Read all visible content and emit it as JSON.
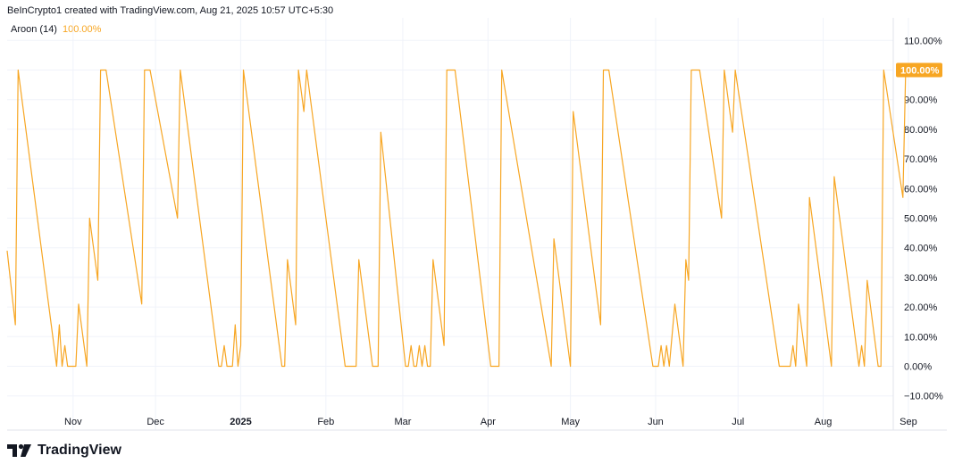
{
  "header": {
    "attribution": "BeInCrypto1 created with TradingView.com, Aug 21, 2025 10:57 UTC+5:30"
  },
  "legend": {
    "name": "Aroon (14)",
    "value": "100.00%"
  },
  "brand": {
    "name": "TradingView"
  },
  "colors": {
    "line": "#f7a623",
    "grid": "#f0f3fa"
  },
  "chart_data": {
    "type": "line",
    "series": [
      {
        "name": "Aroon (14)",
        "color": "#f7a623"
      }
    ],
    "ylim": [
      -10,
      110
    ],
    "yticks": [
      110,
      100,
      90,
      80,
      70,
      60,
      50,
      40,
      30,
      20,
      10,
      0,
      -10
    ],
    "ytick_labels": [
      "110.00%",
      "100.00%",
      "90.00%",
      "80.00%",
      "70.00%",
      "60.00%",
      "50.00%",
      "40.00%",
      "30.00%",
      "20.00%",
      "10.00%",
      "0.00%",
      "−10.00%"
    ],
    "xlim": [
      "2024-10-08",
      "2025-09-15"
    ],
    "xticks": [
      {
        "label": "Nov",
        "date": "2024-11-01",
        "bold": false
      },
      {
        "label": "Dec",
        "date": "2024-12-01",
        "bold": false
      },
      {
        "label": "2025",
        "date": "2025-01-01",
        "bold": true
      },
      {
        "label": "Feb",
        "date": "2025-02-01",
        "bold": false
      },
      {
        "label": "Mar",
        "date": "2025-03-01",
        "bold": false
      },
      {
        "label": "Apr",
        "date": "2025-04-01",
        "bold": false
      },
      {
        "label": "May",
        "date": "2025-05-01",
        "bold": false
      },
      {
        "label": "Jun",
        "date": "2025-06-01",
        "bold": false
      },
      {
        "label": "Jul",
        "date": "2025-07-01",
        "bold": false
      },
      {
        "label": "Aug",
        "date": "2025-08-01",
        "bold": false
      },
      {
        "label": "Sep",
        "date": "2025-09-01",
        "bold": false
      }
    ],
    "points": [
      [
        "2024-10-08",
        39
      ],
      [
        "2024-10-11",
        14
      ],
      [
        "2024-10-12",
        100
      ],
      [
        "2024-10-26",
        0
      ],
      [
        "2024-10-27",
        14
      ],
      [
        "2024-10-28",
        0
      ],
      [
        "2024-10-29",
        7
      ],
      [
        "2024-10-30",
        0
      ],
      [
        "2024-11-02",
        0
      ],
      [
        "2024-11-03",
        21
      ],
      [
        "2024-11-06",
        0
      ],
      [
        "2024-11-07",
        50
      ],
      [
        "2024-11-10",
        29
      ],
      [
        "2024-11-11",
        100
      ],
      [
        "2024-11-13",
        100
      ],
      [
        "2024-11-26",
        21
      ],
      [
        "2024-11-27",
        100
      ],
      [
        "2024-11-29",
        100
      ],
      [
        "2024-12-09",
        50
      ],
      [
        "2024-12-10",
        100
      ],
      [
        "2024-12-24",
        0
      ],
      [
        "2024-12-25",
        0
      ],
      [
        "2024-12-26",
        7
      ],
      [
        "2024-12-27",
        0
      ],
      [
        "2024-12-29",
        0
      ],
      [
        "2024-12-30",
        14
      ],
      [
        "2024-12-31",
        0
      ],
      [
        "2025-01-01",
        7
      ],
      [
        "2025-01-02",
        100
      ],
      [
        "2025-01-16",
        0
      ],
      [
        "2025-01-17",
        0
      ],
      [
        "2025-01-18",
        36
      ],
      [
        "2025-01-21",
        14
      ],
      [
        "2025-01-22",
        100
      ],
      [
        "2025-01-24",
        86
      ],
      [
        "2025-01-25",
        100
      ],
      [
        "2025-02-08",
        0
      ],
      [
        "2025-02-12",
        0
      ],
      [
        "2025-02-13",
        36
      ],
      [
        "2025-02-18",
        0
      ],
      [
        "2025-02-20",
        0
      ],
      [
        "2025-02-21",
        79
      ],
      [
        "2025-03-02",
        0
      ],
      [
        "2025-03-03",
        0
      ],
      [
        "2025-03-04",
        7
      ],
      [
        "2025-03-05",
        0
      ],
      [
        "2025-03-06",
        0
      ],
      [
        "2025-03-07",
        7
      ],
      [
        "2025-03-08",
        0
      ],
      [
        "2025-03-09",
        7
      ],
      [
        "2025-03-10",
        0
      ],
      [
        "2025-03-11",
        0
      ],
      [
        "2025-03-12",
        36
      ],
      [
        "2025-03-16",
        7
      ],
      [
        "2025-03-17",
        100
      ],
      [
        "2025-03-20",
        100
      ],
      [
        "2025-04-02",
        0
      ],
      [
        "2025-04-05",
        0
      ],
      [
        "2025-04-06",
        100
      ],
      [
        "2025-04-24",
        0
      ],
      [
        "2025-04-25",
        43
      ],
      [
        "2025-05-01",
        0
      ],
      [
        "2025-05-02",
        86
      ],
      [
        "2025-05-12",
        14
      ],
      [
        "2025-05-13",
        100
      ],
      [
        "2025-05-15",
        100
      ],
      [
        "2025-05-31",
        0
      ],
      [
        "2025-06-02",
        0
      ],
      [
        "2025-06-03",
        7
      ],
      [
        "2025-06-04",
        0
      ],
      [
        "2025-06-05",
        7
      ],
      [
        "2025-06-06",
        0
      ],
      [
        "2025-06-08",
        21
      ],
      [
        "2025-06-11",
        0
      ],
      [
        "2025-06-12",
        36
      ],
      [
        "2025-06-13",
        29
      ],
      [
        "2025-06-14",
        100
      ],
      [
        "2025-06-17",
        100
      ],
      [
        "2025-06-25",
        50
      ],
      [
        "2025-06-26",
        100
      ],
      [
        "2025-06-29",
        79
      ],
      [
        "2025-06-30",
        100
      ],
      [
        "2025-07-16",
        0
      ],
      [
        "2025-07-20",
        0
      ],
      [
        "2025-07-21",
        7
      ],
      [
        "2025-07-22",
        0
      ],
      [
        "2025-07-23",
        21
      ],
      [
        "2025-07-26",
        0
      ],
      [
        "2025-07-27",
        57
      ],
      [
        "2025-08-04",
        0
      ],
      [
        "2025-08-05",
        64
      ],
      [
        "2025-08-14",
        0
      ],
      [
        "2025-08-15",
        7
      ],
      [
        "2025-08-16",
        0
      ],
      [
        "2025-08-17",
        29
      ],
      [
        "2025-08-21",
        0
      ],
      [
        "2025-08-22",
        0
      ],
      [
        "2025-08-23",
        100
      ],
      [
        "2025-08-30",
        57
      ],
      [
        "2025-08-31",
        100
      ],
      [
        "2025-09-01",
        100
      ]
    ],
    "last_value_label": "100.00%",
    "grid": true
  }
}
